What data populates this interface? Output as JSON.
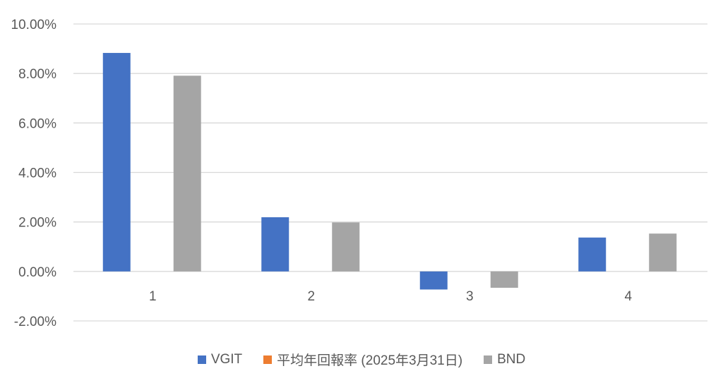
{
  "chart_data": {
    "type": "bar",
    "categories": [
      "1",
      "2",
      "3",
      "4"
    ],
    "series": [
      {
        "name": "VGIT",
        "color": "#4472C4",
        "values": [
          0.0883,
          0.0219,
          -0.0073,
          0.0137
        ]
      },
      {
        "name": "平均年回報率 (2025年3月31日)",
        "color": "#ED7D31",
        "values": [
          null,
          null,
          null,
          null
        ]
      },
      {
        "name": "BND",
        "color": "#A5A5A5",
        "values": [
          0.0791,
          0.0198,
          -0.0066,
          0.0153
        ]
      }
    ],
    "ylim": [
      -0.02,
      0.1
    ],
    "yticks": [
      "-2.00%",
      "0.00%",
      "2.00%",
      "4.00%",
      "6.00%",
      "8.00%",
      "10.00%"
    ],
    "grid": true,
    "legend_position": "bottom"
  }
}
